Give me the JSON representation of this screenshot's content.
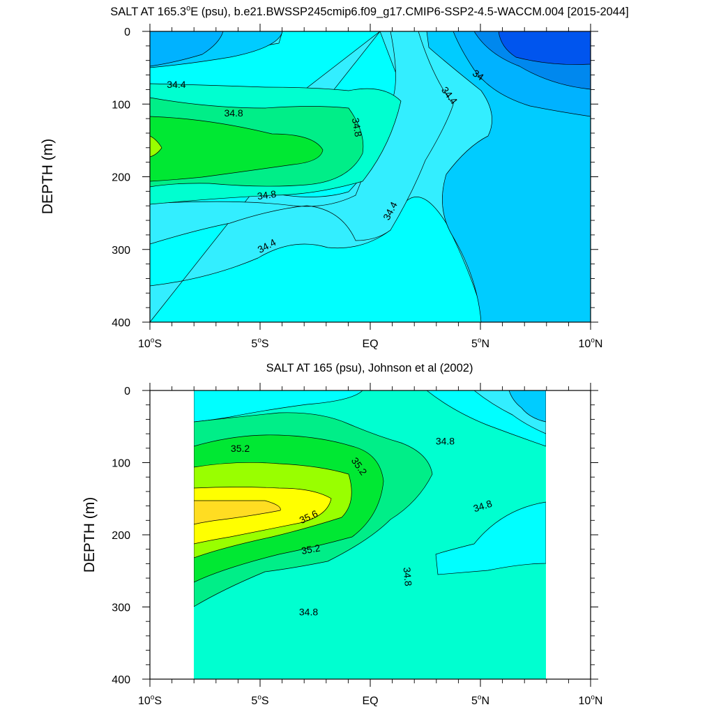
{
  "colors": {
    "c33_6": "#0055ee",
    "c33_8": "#0088ee",
    "c34_0": "#00b2ff",
    "c34_2": "#00ccff",
    "c34_4": "#33eeff",
    "c34_6": "#00ffff",
    "c34_8": "#00ffd0",
    "c35_0": "#00ee88",
    "c35_2": "#00e833",
    "c35_4": "#99ff00",
    "c35_6": "#ffff00",
    "c35_8": "#ffdd22"
  },
  "chart_data": [
    {
      "type": "contour",
      "title_parts": [
        "SALT AT 165.3",
        "o",
        "E (psu), b.e21.BWSSP245cmip6.f09_g17.CMIP6-SSP2-4.5-WACCM.004 [2015-2044]"
      ],
      "xlabel": "",
      "ylabel": "DEPTH (m)",
      "xlim": [
        -10,
        10
      ],
      "ylim": [
        400,
        0
      ],
      "x_ticks": [
        {
          "value": -10,
          "num": "10",
          "deg": "o",
          "suf": "S"
        },
        {
          "value": -5,
          "num": "5",
          "deg": "o",
          "suf": "S"
        },
        {
          "value": 0,
          "num": "EQ",
          "deg": "",
          "suf": ""
        },
        {
          "value": 5,
          "num": "5",
          "deg": "o",
          "suf": "N"
        },
        {
          "value": 10,
          "num": "10",
          "deg": "o",
          "suf": "N"
        }
      ],
      "y_ticks": [
        "0",
        "100",
        "200",
        "300",
        "400"
      ],
      "contour_interval": 0.2,
      "contour_labels": [
        {
          "text": "34.4",
          "x": -8.8,
          "depth": 73,
          "angle": 0
        },
        {
          "text": "34.8",
          "x": -6.2,
          "depth": 112,
          "angle": 0
        },
        {
          "text": "34.8",
          "x": -0.6,
          "depth": 132,
          "angle": 80
        },
        {
          "text": "34.4",
          "x": 3.6,
          "depth": 88,
          "angle": 52
        },
        {
          "text": "34",
          "x": 4.9,
          "depth": 60,
          "angle": 35
        },
        {
          "text": "34.8",
          "x": -4.7,
          "depth": 225,
          "angle": -8
        },
        {
          "text": "34.4",
          "x": 0.9,
          "depth": 247,
          "angle": -62
        },
        {
          "text": "34.4",
          "x": -4.7,
          "depth": 295,
          "angle": -28
        }
      ]
    },
    {
      "type": "contour",
      "title_parts": [
        "SALT AT 165 (psu), Johnson et al (2002)"
      ],
      "xlabel": "",
      "ylabel": "DEPTH (m)",
      "xlim": [
        -10,
        10
      ],
      "ylim": [
        400,
        0
      ],
      "data_x_range": [
        -8,
        8
      ],
      "x_ticks": [
        {
          "value": -10,
          "num": "10",
          "deg": "o",
          "suf": "S"
        },
        {
          "value": -5,
          "num": "5",
          "deg": "o",
          "suf": "S"
        },
        {
          "value": 0,
          "num": "EQ",
          "deg": "",
          "suf": ""
        },
        {
          "value": 5,
          "num": "5",
          "deg": "o",
          "suf": "N"
        },
        {
          "value": 10,
          "num": "10",
          "deg": "o",
          "suf": "N"
        }
      ],
      "y_ticks": [
        "0",
        "100",
        "200",
        "300",
        "400"
      ],
      "contour_interval": 0.2,
      "contour_labels": [
        {
          "text": "35.2",
          "x": -5.9,
          "depth": 80,
          "angle": 0
        },
        {
          "text": "35.2",
          "x": -0.5,
          "depth": 105,
          "angle": 55
        },
        {
          "text": "34.8",
          "x": 3.4,
          "depth": 70,
          "angle": 0
        },
        {
          "text": "35.6",
          "x": -2.8,
          "depth": 175,
          "angle": -25
        },
        {
          "text": "35.2",
          "x": -2.7,
          "depth": 220,
          "angle": -10
        },
        {
          "text": "34.8",
          "x": 5.1,
          "depth": 160,
          "angle": -18
        },
        {
          "text": "34.8",
          "x": 1.7,
          "depth": 258,
          "angle": 85
        },
        {
          "text": "34.8",
          "x": -2.8,
          "depth": 307,
          "angle": 0
        }
      ]
    }
  ]
}
